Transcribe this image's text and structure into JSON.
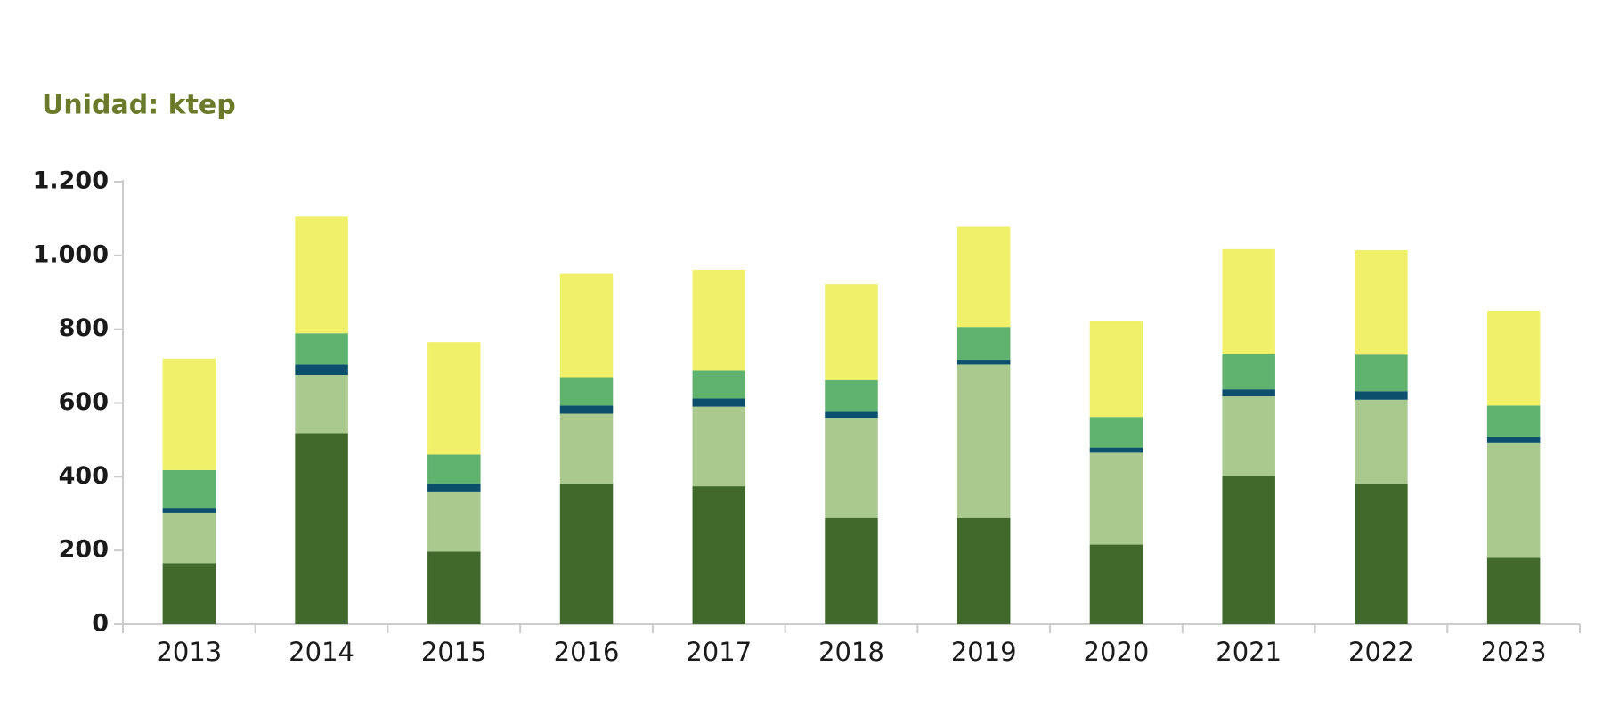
{
  "chart_data": {
    "type": "stacked_bar",
    "title": "Unidad: ktep",
    "categories": [
      "2013",
      "2014",
      "2015",
      "2016",
      "2017",
      "2018",
      "2019",
      "2020",
      "2021",
      "2022",
      "2023"
    ],
    "series": [
      {
        "color": "#41692b",
        "values": [
          166,
          518,
          197,
          382,
          374,
          288,
          288,
          216,
          402,
          380,
          180
        ]
      },
      {
        "color": "#a9c98f",
        "values": [
          136,
          158,
          163,
          189,
          216,
          272,
          416,
          249,
          216,
          229,
          313
        ]
      },
      {
        "color": "#0b4f6c",
        "values": [
          14,
          28,
          20,
          22,
          22,
          16,
          13,
          14,
          19,
          23,
          14
        ]
      },
      {
        "color": "#5fb36f",
        "values": [
          102,
          85,
          80,
          77,
          75,
          86,
          89,
          83,
          97,
          99,
          86
        ]
      },
      {
        "color": "#f0f06a",
        "values": [
          302,
          316,
          305,
          280,
          274,
          260,
          272,
          261,
          283,
          283,
          257
        ]
      }
    ],
    "ylim": [
      0,
      1200
    ],
    "yticks": [
      0,
      200,
      400,
      600,
      800,
      {
        "value": 1000,
        "label": "1.000"
      },
      {
        "value": 1200,
        "label": "1.200"
      }
    ]
  }
}
